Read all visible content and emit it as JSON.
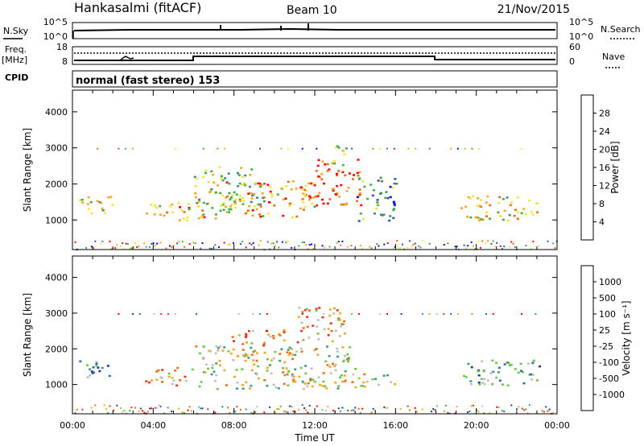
{
  "header": {
    "station": "Hankasalmi (fitACF)",
    "beam": "Beam 10",
    "date": "21/Nov/2015"
  },
  "status_panel": {
    "nsky_label": "N.Sky",
    "nsearch_label": "N.Search",
    "noise_left_ticks": [
      "10^5",
      "10^0"
    ],
    "noise_right_ticks": [
      "10^5",
      "10^0"
    ],
    "freq_label_line1": "Freq.",
    "freq_label_line2": "[MHz]",
    "freq_ticks": [
      "18",
      "8"
    ],
    "nave_label": "Nave",
    "nave_ticks": [
      "60",
      "0"
    ],
    "cpid_label": "CPID",
    "cpid_value": "normal (fast stereo) 153"
  },
  "chart_data": [
    {
      "type": "heatmap",
      "ylabel": "Slant Range [km]",
      "xlabel": "",
      "yticks": [
        "1000",
        "2000",
        "3000",
        "4000"
      ],
      "xlim": [
        0,
        24
      ],
      "ylim": [
        180,
        4600
      ],
      "colorbar": {
        "label": "Power [dB]",
        "ticks": [
          "4",
          "8",
          "12",
          "16",
          "20",
          "24",
          "28"
        ],
        "colors": [
          "#0000ff",
          "#2a4fb8",
          "#3f8a74",
          "#3fae3f",
          "#f0e63a",
          "#f5a623",
          "#f06a10",
          "#ff0000"
        ]
      },
      "blobs": [
        {
          "t0": 0.3,
          "t1": 2.0,
          "r0": 1150,
          "r1": 1700,
          "level": 0.5
        },
        {
          "t0": 3.6,
          "t1": 7.2,
          "r0": 1000,
          "r1": 1500,
          "level": 0.7
        },
        {
          "t0": 6.0,
          "t1": 9.5,
          "r0": 1200,
          "r1": 2500,
          "level": 0.5
        },
        {
          "t0": 7.5,
          "t1": 12.0,
          "r0": 1100,
          "r1": 2100,
          "level": 0.7
        },
        {
          "t0": 12.0,
          "t1": 14.3,
          "r0": 1400,
          "r1": 2700,
          "level": 0.85
        },
        {
          "t0": 12.8,
          "t1": 13.6,
          "r0": 2500,
          "r1": 3200,
          "level": 0.5
        },
        {
          "t0": 14.0,
          "t1": 16.0,
          "r0": 1000,
          "r1": 2200,
          "level": 0.35
        },
        {
          "t0": 19.2,
          "t1": 23.2,
          "r0": 1000,
          "r1": 1700,
          "level": 0.6
        }
      ]
    },
    {
      "type": "heatmap",
      "ylabel": "Slant Range [km]",
      "xlabel": "Time UT",
      "yticks": [
        "1000",
        "2000",
        "3000",
        "4000"
      ],
      "xticks": [
        "00:00",
        "04:00",
        "08:00",
        "12:00",
        "16:00",
        "20:00",
        "00:00"
      ],
      "xlim": [
        0,
        24
      ],
      "ylim": [
        180,
        4600
      ],
      "colorbar": {
        "label": "Velocity [m s⁻¹]",
        "ticks": [
          "1000",
          "500",
          "100",
          "25",
          "-25",
          "-100",
          "-500",
          "-1000"
        ],
        "colors": [
          "#1c3a9a",
          "#2a6bb0",
          "#3f9a7a",
          "#6fc44a",
          "#bebebe",
          "#f5a623",
          "#f06a10",
          "#ee3020",
          "#ff0000"
        ]
      },
      "blobs": [
        {
          "t0": 0.3,
          "t1": 2.0,
          "r0": 1150,
          "r1": 1700,
          "level": 0.25
        },
        {
          "t0": 3.6,
          "t1": 6.0,
          "r0": 1000,
          "r1": 1500,
          "level": 0.6
        },
        {
          "t0": 6.0,
          "t1": 14.5,
          "r0": 900,
          "r1": 2100,
          "level": 0.5
        },
        {
          "t0": 7.8,
          "t1": 10.5,
          "r0": 2100,
          "r1": 2600,
          "level": 0.65
        },
        {
          "t0": 11.0,
          "t1": 13.5,
          "r0": 2200,
          "r1": 3200,
          "level": 0.65
        },
        {
          "t0": 14.5,
          "t1": 16.0,
          "r0": 1000,
          "r1": 1300,
          "level": 0.4
        },
        {
          "t0": 19.2,
          "t1": 23.2,
          "r0": 1000,
          "r1": 1700,
          "level": 0.3
        }
      ]
    }
  ]
}
